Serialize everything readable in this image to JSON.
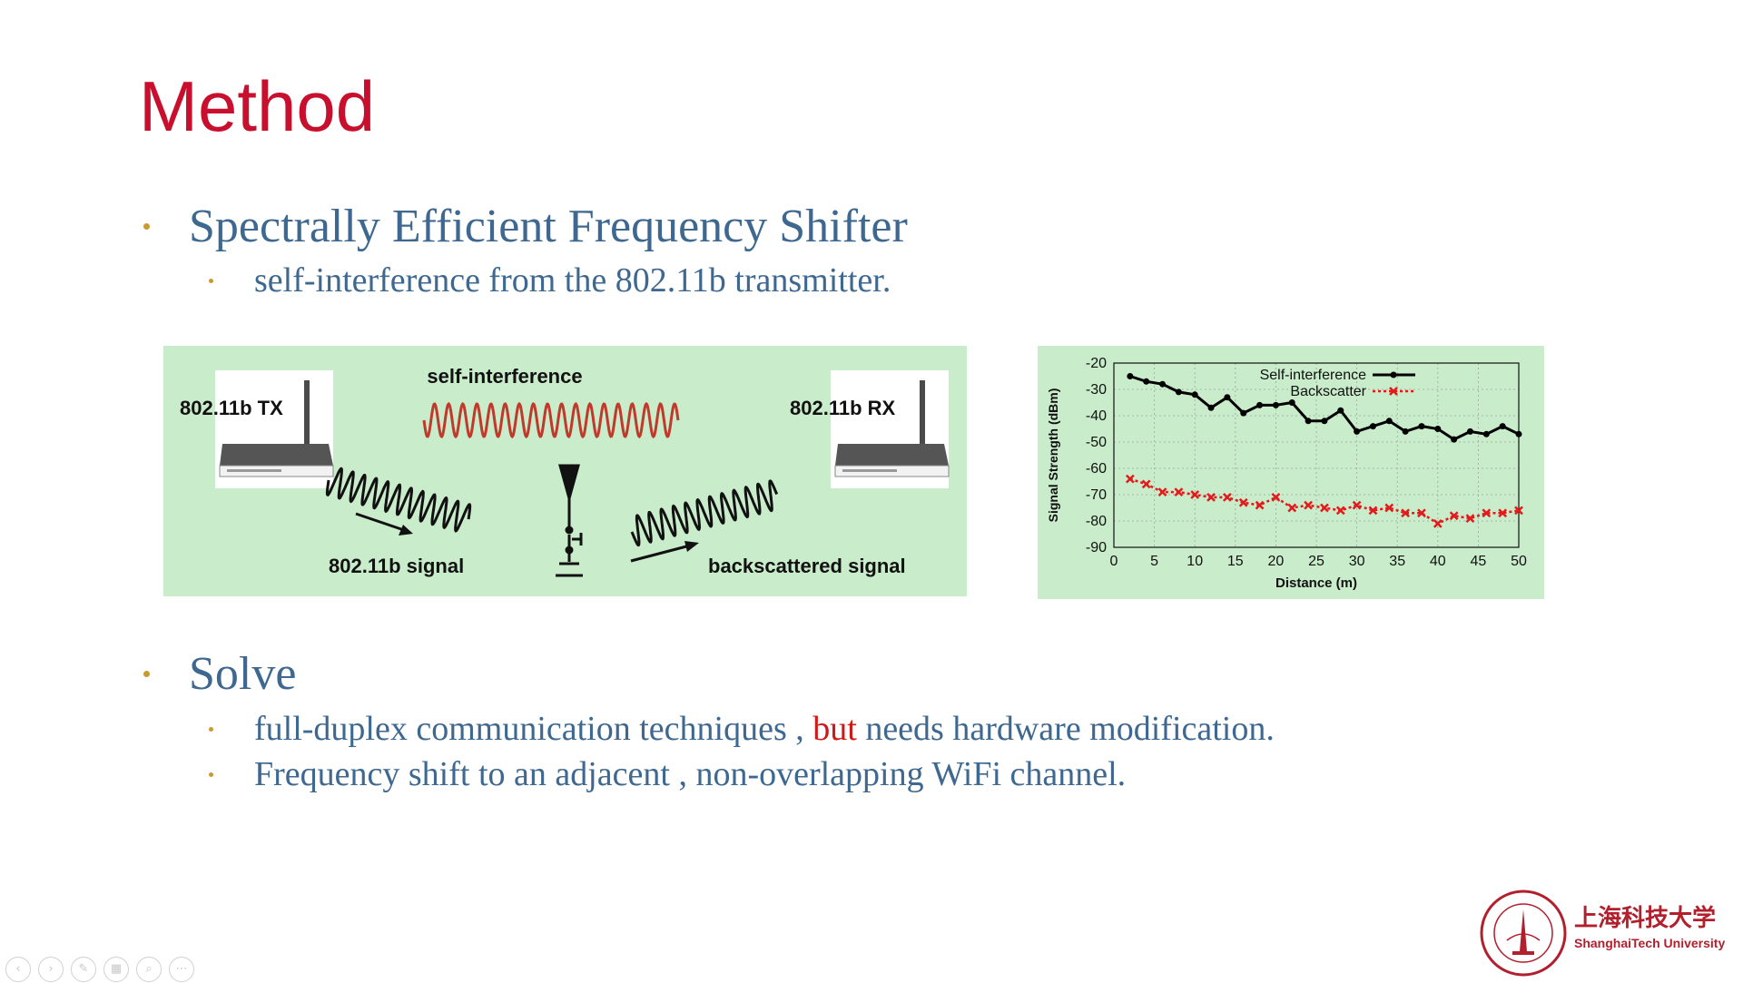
{
  "slide": {
    "title": "Method",
    "bullet1": "Spectrally Efficient Frequency Shifter",
    "bullet1_sub": "self-interference from the 802.11b transmitter.",
    "bullet2": "Solve",
    "bullet2_sub1_a": "full-duplex communication techniques , ",
    "bullet2_sub1_b": "but",
    "bullet2_sub1_c": " needs hardware modification.",
    "bullet2_sub2": "Frequency shift to an adjacent , non-overlapping WiFi channel."
  },
  "diagram": {
    "tx_label": "802.11b TX",
    "rx_label": "802.11b RX",
    "self_interference_label": "self-interference",
    "signal_label": "802.11b signal",
    "backscatter_label": "backscattered signal"
  },
  "chart_data": {
    "type": "line",
    "xlabel": "Distance (m)",
    "ylabel": "Signal Strength (dBm)",
    "xlim": [
      0,
      50
    ],
    "ylim": [
      -90,
      -20
    ],
    "xticks": [
      0,
      5,
      10,
      15,
      20,
      25,
      30,
      35,
      40,
      45,
      50
    ],
    "yticks": [
      -20,
      -30,
      -40,
      -50,
      -60,
      -70,
      -80,
      -90
    ],
    "grid": true,
    "legend_position": "top-right",
    "series": [
      {
        "name": "Self-interference",
        "color": "#000000",
        "x": [
          2,
          4,
          6,
          8,
          10,
          12,
          14,
          16,
          18,
          20,
          22,
          24,
          26,
          28,
          30,
          32,
          34,
          36,
          38,
          40,
          42,
          44,
          46,
          48,
          50
        ],
        "values": [
          -25,
          -27,
          -28,
          -31,
          -32,
          -37,
          -33,
          -39,
          -36,
          -36,
          -35,
          -42,
          -42,
          -38,
          -46,
          -44,
          -42,
          -46,
          -44,
          -45,
          -49,
          -46,
          -47,
          -44,
          -47
        ]
      },
      {
        "name": "Backscatter",
        "color": "#e31a1c",
        "x": [
          2,
          4,
          6,
          8,
          10,
          12,
          14,
          16,
          18,
          20,
          22,
          24,
          26,
          28,
          30,
          32,
          34,
          36,
          38,
          40,
          42,
          44,
          46,
          48,
          50
        ],
        "values": [
          -64,
          -66,
          -69,
          -69,
          -70,
          -71,
          -71,
          -73,
          -74,
          -71,
          -75,
          -74,
          -75,
          -76,
          -74,
          -76,
          -75,
          -77,
          -77,
          -81,
          -78,
          -79,
          -77,
          -77,
          -76
        ]
      }
    ]
  },
  "logo": {
    "name_cn": "上海科技大学",
    "name_en": "ShanghaiTech University"
  },
  "nav_icons": [
    "back-icon",
    "forward-icon",
    "pen-icon",
    "slides-icon",
    "zoom-icon",
    "more-icon"
  ]
}
